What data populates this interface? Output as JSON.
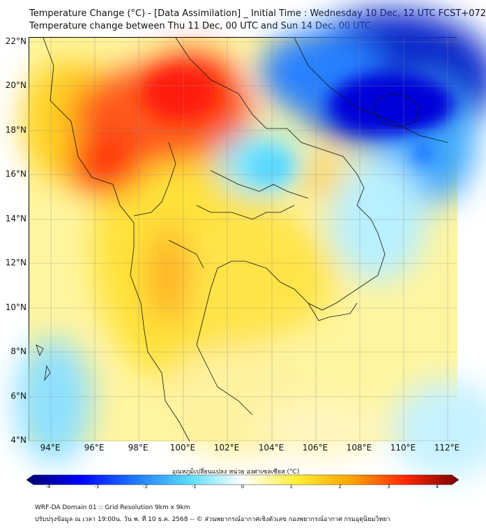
{
  "title": {
    "line1": "Temperature Change (°C) - [Data Assimilation] _ Initial Time : Wednesday 10 Dec, 12 UTC FCST+072",
    "line2": "Temperature change between Thu 11 Dec, 00 UTC and Sun 14 Dec, 00 UTC"
  },
  "map": {
    "lat_labels": [
      "22°N",
      "20°N",
      "18°N",
      "16°N",
      "14°N",
      "12°N",
      "10°N",
      "8°N",
      "6°N",
      "4°N"
    ],
    "lon_labels": [
      "94°E",
      "96°E",
      "98°E",
      "100°E",
      "102°E",
      "104°E",
      "106°E",
      "108°E",
      "110°E",
      "112°E"
    ]
  },
  "colorbar": {
    "title": "อุณหภูมิเปลี่ยนแปลง หน่วย องศาเซลเซียส (°C)",
    "ticks": [
      "-4",
      "-3",
      "-2",
      "-1",
      "0",
      "1",
      "2",
      "3",
      "4"
    ],
    "colors": [
      "#00006e",
      "#0000ff",
      "#1e78ff",
      "#5adcff",
      "#ffffff",
      "#ffee33",
      "#ffa500",
      "#ff2800",
      "#7a0000"
    ]
  },
  "footer": {
    "line1": "WRF-DA Domain 01 :: Grid Resolution 9km x 9km",
    "line2": "ปรับปรุงข้อมูล ณ เวลา 19:00น. วัน พ. ที่ 10 ธ.ค. 2568 -- © ส่วนพยากรณ์อากาศเชิงตัวเลข กองพยากรณ์อากาศ กรมอุตุนิยมวิทยา"
  }
}
